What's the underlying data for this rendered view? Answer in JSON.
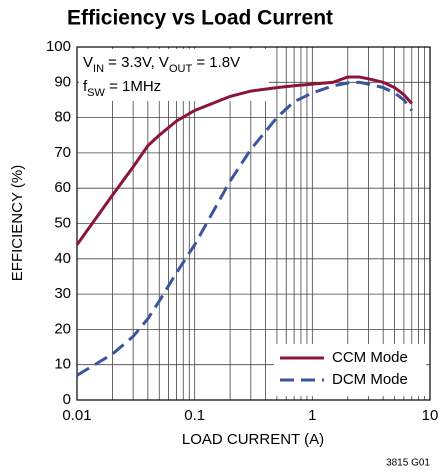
{
  "chart_data": {
    "type": "line",
    "title": "Efficiency vs Load Current",
    "xlabel": "LOAD CURRENT (A)",
    "ylabel": "EFFICIENCY (%)",
    "footnote": "3815 G01",
    "annotation": [
      [
        "V",
        "IN",
        " = 3.3V, V",
        "OUT",
        " = 1.8V"
      ],
      [
        "f",
        "SW",
        " = 1MHz"
      ]
    ],
    "xscale": "log",
    "xlim": [
      0.01,
      10
    ],
    "ylim": [
      0,
      100
    ],
    "xticks": [
      0.01,
      0.1,
      1,
      10
    ],
    "yticks": [
      0,
      10,
      20,
      30,
      40,
      50,
      60,
      70,
      80,
      90,
      100
    ],
    "xgrid_minor": [
      0.02,
      0.03,
      0.04,
      0.05,
      0.06,
      0.07,
      0.08,
      0.09,
      0.2,
      0.3,
      0.4,
      0.5,
      0.6,
      0.7,
      0.8,
      0.9,
      2,
      3,
      4,
      5,
      6,
      7,
      8,
      9
    ],
    "grid": true,
    "legend": "lower right",
    "x": [
      0.01,
      0.02,
      0.03,
      0.04,
      0.05,
      0.07,
      0.1,
      0.2,
      0.3,
      0.5,
      0.7,
      1,
      1.5,
      2,
      2.5,
      3,
      4,
      5,
      6,
      7
    ],
    "series": [
      {
        "name": "CCM Mode",
        "color": "#8b1538",
        "dash": false,
        "values": [
          44,
          58,
          66,
          72,
          75,
          79,
          82,
          86,
          87.5,
          88.5,
          89,
          89.5,
          90,
          91.5,
          91.5,
          91,
          90,
          88.5,
          86.5,
          84
        ]
      },
      {
        "name": "DCM Mode",
        "color": "#3a55a0",
        "dash": true,
        "values": [
          7,
          13,
          18,
          23,
          28,
          36,
          44,
          62,
          71,
          80,
          84.5,
          87,
          89,
          89.8,
          90,
          89.5,
          88.5,
          87,
          85,
          82
        ]
      }
    ]
  }
}
